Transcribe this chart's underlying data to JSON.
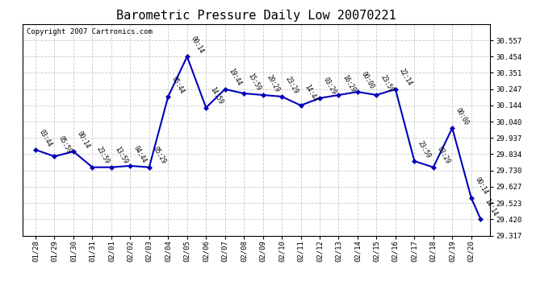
{
  "title": "Barometric Pressure Daily Low 20070221",
  "copyright": "Copyright 2007 Cartronics.com",
  "x_labels": [
    "01/28",
    "01/29",
    "01/30",
    "01/31",
    "02/01",
    "02/02",
    "02/03",
    "02/04",
    "02/05",
    "02/06",
    "02/07",
    "02/08",
    "02/09",
    "02/10",
    "02/11",
    "02/12",
    "02/13",
    "02/14",
    "02/15",
    "02/16",
    "02/17",
    "02/18",
    "02/19",
    "02/20"
  ],
  "x_numeric": [
    0,
    1,
    2,
    3,
    4,
    5,
    6,
    7,
    8,
    9,
    10,
    11,
    12,
    13,
    14,
    15,
    16,
    17,
    18,
    19,
    20,
    21,
    22,
    23,
    23.5
  ],
  "y_values": [
    29.862,
    29.82,
    29.851,
    29.751,
    29.751,
    29.76,
    29.751,
    30.2,
    30.454,
    30.13,
    30.247,
    30.22,
    30.21,
    30.2,
    30.144,
    30.19,
    30.21,
    30.23,
    30.21,
    30.247,
    29.79,
    29.751,
    30.0,
    29.557,
    29.42
  ],
  "point_labels": [
    "03:44",
    "05:59",
    "00:14",
    "23:59",
    "13:59",
    "04:44",
    "05:29",
    "05:44",
    "00:14",
    "14:59",
    "19:44",
    "15:59",
    "20:29",
    "23:29",
    "14:44",
    "03:29",
    "16:29",
    "00:00",
    "23:59",
    "22:14",
    "23:59",
    "03:29",
    "00:00",
    "00:14",
    "14:14"
  ],
  "ylim_min": 29.317,
  "ylim_max": 30.66,
  "yticks": [
    29.317,
    29.42,
    29.523,
    29.627,
    29.73,
    29.834,
    29.937,
    30.04,
    30.144,
    30.247,
    30.351,
    30.454,
    30.557
  ],
  "line_color": "#0000bb",
  "bg_color": "#ffffff",
  "grid_color": "#bbbbbb",
  "title_fontsize": 11,
  "copyright_fontsize": 6.5,
  "tick_fontsize": 6.5
}
